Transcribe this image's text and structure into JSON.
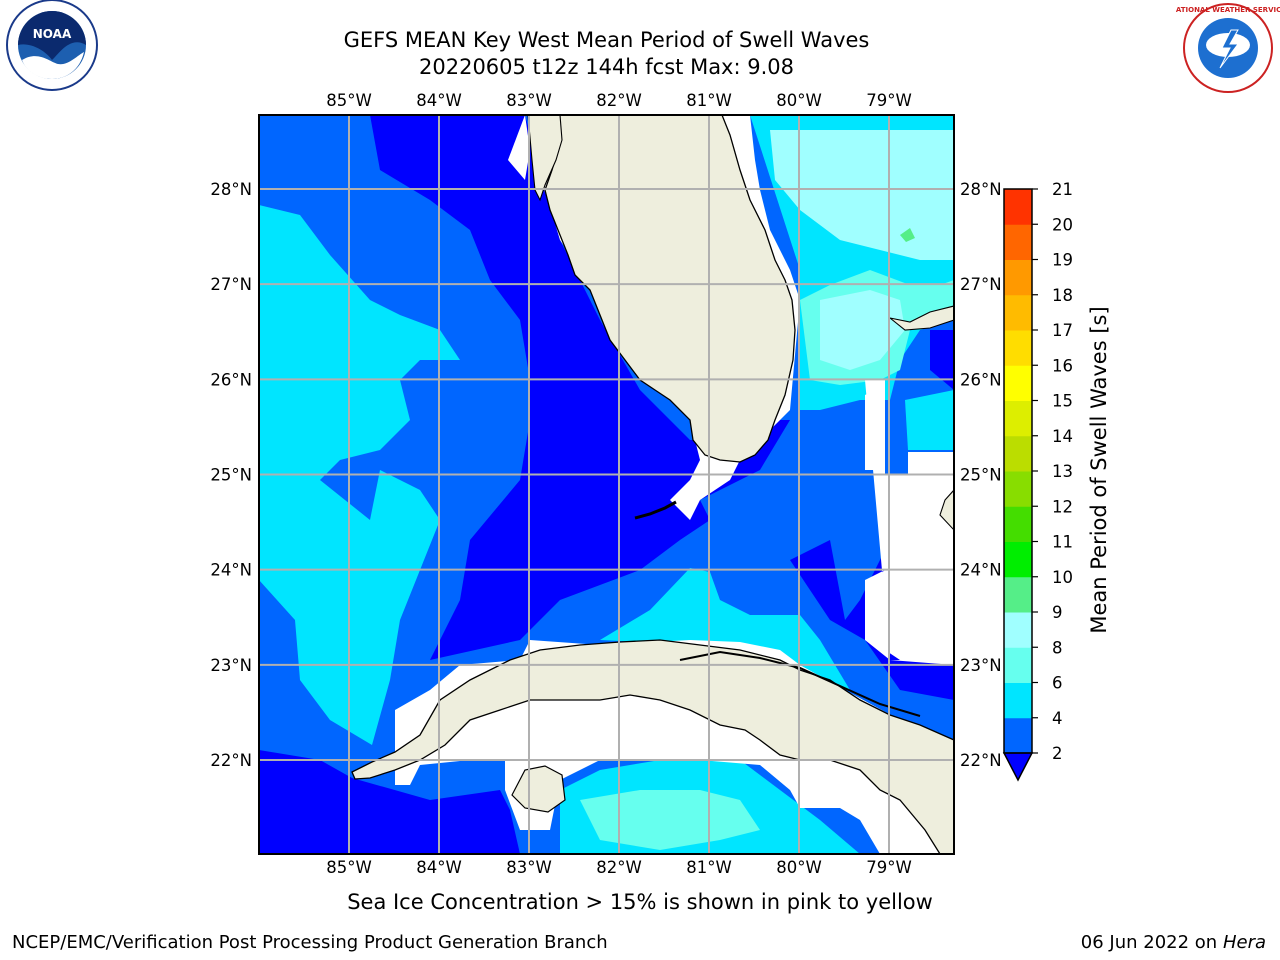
{
  "title_line1": "GEFS MEAN Key West Mean Period of Swell Waves",
  "title_line2": "20220605 t12z 144h fcst   Max: 9.08",
  "colorbar_label": "Mean Period of Swell Waves [s]",
  "footnote": "Sea Ice Concentration > 15% is shown in pink to yellow",
  "credit": "NCEP/EMC/Verification Post Processing Product Generation Branch",
  "date_text": "06 Jun 2022 on",
  "date_host": "Hera",
  "logos": {
    "left": "noaa-logo",
    "right": "nws-logo",
    "left_text": "NOAA",
    "right_text": "NATIONAL WEATHER SERVICE"
  },
  "map": {
    "lon_range": [
      -86.0,
      -78.3
    ],
    "lat_range": [
      21.0,
      28.8
    ],
    "lon_ticks": [
      -85,
      -84,
      -83,
      -82,
      -81,
      -80,
      -79
    ],
    "lat_ticks": [
      22,
      23,
      24,
      25,
      26,
      27,
      28
    ],
    "lon_labels": [
      "85°W",
      "84°W",
      "83°W",
      "82°W",
      "81°W",
      "80°W",
      "79°W"
    ],
    "lat_labels": [
      "22°N",
      "23°N",
      "24°N",
      "25°N",
      "26°N",
      "27°N",
      "28°N"
    ],
    "land_color": "#eeeedd",
    "grid_color": "#b0b0b0"
  },
  "colorbar": {
    "levels": [
      2,
      4,
      6,
      8,
      9,
      10,
      11,
      12,
      13,
      14,
      15,
      16,
      17,
      18,
      19,
      20,
      21
    ],
    "tick_labels": [
      "2",
      "4",
      "6",
      "8",
      "9",
      "10",
      "11",
      "12",
      "13",
      "14",
      "15",
      "16",
      "17",
      "18",
      "19",
      "20",
      "21"
    ],
    "colors": [
      "#0066ff",
      "#00e5ff",
      "#66ffee",
      "#a0ffff",
      "#55ee88",
      "#00ee00",
      "#44dd00",
      "#88dd00",
      "#bbdd00",
      "#ddee00",
      "#ffff00",
      "#ffdd00",
      "#ffbb00",
      "#ff9900",
      "#ff6600",
      "#ff3300"
    ],
    "under_color": "#0000ff",
    "extend": "min"
  },
  "fields": {
    "under_2": "#0000ff",
    "c2_4": "#0066ff",
    "c4_6": "#00e5ff",
    "c6_8": "#66ffee",
    "c8_9": "#a0ffff",
    "c9_10": "#55ee88"
  }
}
